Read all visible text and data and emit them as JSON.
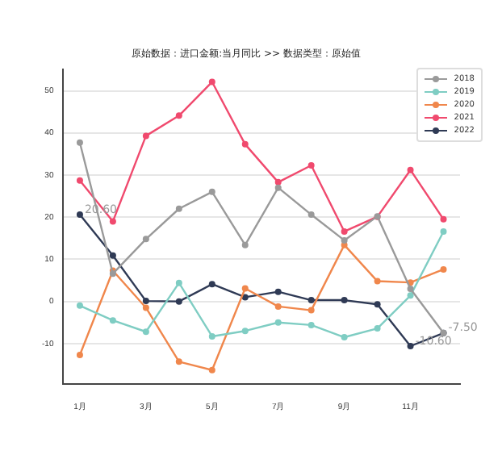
{
  "chart_data": {
    "type": "line",
    "title": "原始数据：进口金额:当月同比 >> 数据类型：原始值",
    "categories": [
      "1月",
      null,
      "3月",
      null,
      "5月",
      null,
      "7月",
      null,
      "9月",
      null,
      "11月",
      null
    ],
    "series": [
      {
        "name": "2018",
        "color": "#9a9a9a",
        "values": [
          37.7,
          6.6,
          14.8,
          22,
          26,
          13.4,
          27,
          20.6,
          14.5,
          20.2,
          3,
          -7.5
        ]
      },
      {
        "name": "2019",
        "color": "#7fcdc3",
        "values": [
          -1,
          -4.5,
          -7.2,
          4.4,
          -8.3,
          -7,
          -5,
          -5.6,
          -8.5,
          -6.4,
          1.4,
          16.6
        ]
      },
      {
        "name": "2020",
        "color": "#f0874c",
        "values": [
          -12.7,
          7.3,
          -1.5,
          -14.3,
          -16.3,
          3.1,
          -1.2,
          -2.1,
          13.4,
          4.8,
          4.5,
          7.6
        ]
      },
      {
        "name": "2021",
        "color": "#f04a6e",
        "values": [
          28.7,
          19,
          39.3,
          44.1,
          52.1,
          37.3,
          28.3,
          32.3,
          16.6,
          20.1,
          31.2,
          19.5
        ]
      },
      {
        "name": "2022",
        "color": "#2f3a55",
        "values": [
          20.6,
          10.9,
          0.1,
          0,
          4.1,
          1,
          2.3,
          0.3,
          0.3,
          -0.7,
          -10.6,
          -7.5
        ],
        "value_labels": [
          "20.60",
          null,
          null,
          null,
          null,
          null,
          null,
          null,
          null,
          null,
          "-10.60",
          "-7.50"
        ]
      }
    ],
    "ylim": [
      -19.6,
      55
    ],
    "yticks": [
      -10,
      0,
      10,
      20,
      30,
      40,
      50
    ],
    "grid": "y",
    "legend": "top right",
    "marker": "circle",
    "line_style": "solid"
  }
}
